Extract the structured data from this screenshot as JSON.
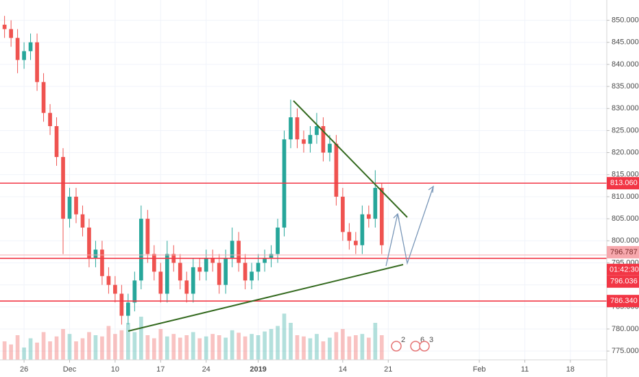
{
  "chart_data": {
    "type": "candlestick",
    "x": [
      -3,
      -2,
      -1,
      0,
      1,
      2,
      3,
      4,
      5,
      6,
      7,
      8,
      9,
      10,
      11,
      12,
      13,
      14,
      15,
      16,
      17,
      18,
      19,
      20,
      21,
      22,
      23,
      24,
      25,
      26,
      27,
      28,
      29,
      30,
      31,
      32,
      33,
      34,
      35,
      36,
      37,
      38,
      39,
      40,
      41,
      42,
      43,
      44,
      45,
      46,
      47,
      48,
      49,
      50,
      51,
      52,
      53,
      54,
      55
    ],
    "open": [
      849,
      848,
      846,
      841,
      843,
      845,
      836,
      829,
      826,
      819,
      805,
      810,
      806,
      803,
      796,
      798,
      792,
      790,
      788,
      783,
      786,
      791,
      805,
      797,
      793,
      788,
      797,
      795,
      791,
      788,
      794,
      793,
      796,
      795,
      790,
      796,
      800,
      795,
      791,
      793,
      795,
      796,
      797,
      803,
      823,
      828,
      823,
      822,
      824,
      826,
      820,
      822,
      810,
      802,
      800,
      799,
      806,
      805,
      812
    ],
    "high": [
      851,
      850,
      848,
      845,
      847,
      847,
      838,
      831,
      828,
      821,
      812,
      812,
      808,
      805,
      800,
      800,
      794,
      792,
      790,
      788,
      793,
      808,
      807,
      799,
      795,
      800,
      799,
      797,
      793,
      796,
      796,
      798,
      798,
      797,
      798,
      803,
      802,
      797,
      795,
      797,
      798,
      799,
      805,
      825,
      832,
      830,
      825,
      826,
      829,
      828,
      824,
      824,
      812,
      804,
      802,
      808,
      808,
      816,
      813
    ],
    "low": [
      846,
      844,
      838,
      839,
      841,
      834,
      827,
      824,
      817,
      797,
      803,
      804,
      801,
      794,
      794,
      790,
      788,
      786,
      781,
      781,
      784,
      789,
      795,
      791,
      786,
      786,
      793,
      789,
      786,
      786,
      791,
      791,
      793,
      788,
      788,
      794,
      793,
      789,
      789,
      791,
      793,
      794,
      795,
      801,
      821,
      821,
      820,
      820,
      822,
      818,
      818,
      808,
      800,
      798,
      797,
      797,
      803,
      803,
      797
    ],
    "close": [
      848,
      846,
      841,
      843,
      845,
      836,
      829,
      826,
      819,
      805,
      810,
      806,
      803,
      796,
      798,
      792,
      790,
      788,
      783,
      786,
      791,
      805,
      797,
      793,
      788,
      797,
      795,
      791,
      788,
      794,
      793,
      796,
      795,
      790,
      796,
      800,
      795,
      791,
      793,
      795,
      796,
      797,
      803,
      823,
      828,
      823,
      822,
      824,
      826,
      820,
      822,
      810,
      802,
      800,
      799,
      806,
      805,
      812,
      799
    ],
    "volume": [
      30,
      25,
      40,
      20,
      35,
      28,
      45,
      30,
      38,
      50,
      42,
      30,
      35,
      45,
      40,
      38,
      55,
      42,
      48,
      60,
      45,
      70,
      40,
      35,
      50,
      38,
      42,
      36,
      40,
      45,
      35,
      38,
      42,
      40,
      36,
      48,
      44,
      38,
      42,
      40,
      46,
      50,
      55,
      75,
      60,
      40,
      38,
      35,
      42,
      30,
      36,
      45,
      50,
      38,
      40,
      42,
      36,
      60,
      40
    ],
    "up_color": "#26a69a",
    "down_color": "#ef5350",
    "xlim": [
      -3.7,
      89.6
    ],
    "ylim": [
      773,
      854.6
    ],
    "xticks": [
      {
        "value": 0,
        "label": "26"
      },
      {
        "value": 7,
        "label": "Dec"
      },
      {
        "value": 14,
        "label": "10"
      },
      {
        "value": 21,
        "label": "17"
      },
      {
        "value": 28,
        "label": "24"
      },
      {
        "value": 36,
        "label": "2019"
      },
      {
        "value": 49,
        "label": "14"
      },
      {
        "value": 56,
        "label": "21"
      },
      {
        "value": 70,
        "label": "Feb"
      },
      {
        "value": 77,
        "label": "11"
      },
      {
        "value": 84,
        "label": "18"
      }
    ],
    "yticks": [
      {
        "value": 775,
        "label": "775.000"
      },
      {
        "value": 780,
        "label": "780.000"
      },
      {
        "value": 785,
        "label": "785.000"
      },
      {
        "value": 790,
        "label": "790.000"
      },
      {
        "value": 795,
        "label": "795.000"
      },
      {
        "value": 800,
        "label": "800.000"
      },
      {
        "value": 805,
        "label": "805.000"
      },
      {
        "value": 810,
        "label": "810.000"
      },
      {
        "value": 815,
        "label": "815.000"
      },
      {
        "value": 820,
        "label": "820.000"
      },
      {
        "value": 825,
        "label": "825.000"
      },
      {
        "value": 830,
        "label": "830.000"
      },
      {
        "value": 835,
        "label": "835.000"
      },
      {
        "value": 840,
        "label": "840.000"
      },
      {
        "value": 845,
        "label": "845.000"
      },
      {
        "value": 850,
        "label": "850.000"
      }
    ],
    "grid": true,
    "price_lines": [
      {
        "value": 813.06,
        "label": "813.060",
        "color": "#f23645"
      },
      {
        "value": 796.787,
        "label": "796.787",
        "color": "#f7a8ad"
      },
      {
        "value": 796.036,
        "label": "796.036",
        "color": "#f23645"
      },
      {
        "value": 786.34,
        "label": "786.340",
        "color": "#f23645"
      }
    ],
    "countdown": "01:42:30",
    "event_labels": [
      "2",
      "6",
      "3"
    ]
  }
}
